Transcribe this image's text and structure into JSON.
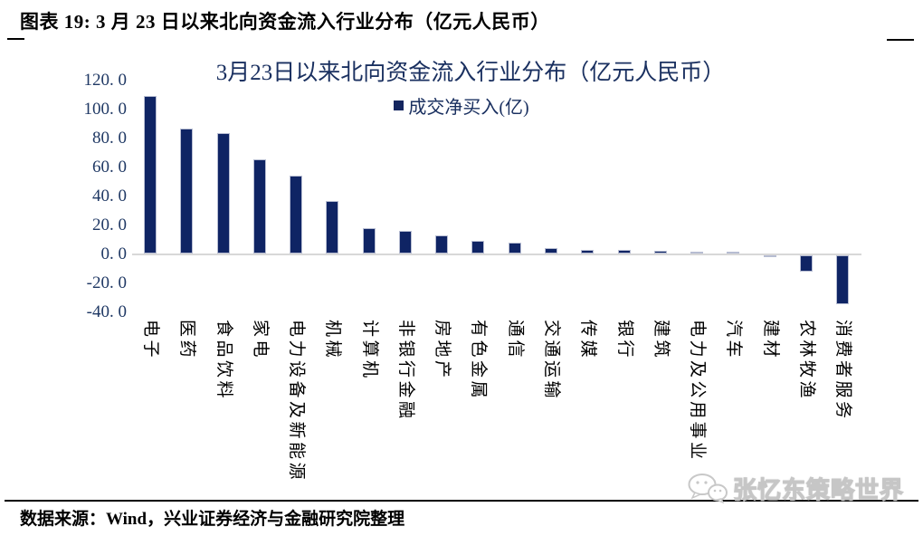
{
  "figure": {
    "caption": "图表 19:  3 月 23 日以来北向资金流入行业分布（亿元人民币）",
    "source": "数据来源：Wind，兴业证券经济与金融研究院整理",
    "watermark": "张忆东策略世界"
  },
  "chart_data": {
    "type": "bar",
    "title": "3月23日以来北向资金流入行业分布（亿元人民币）",
    "legend_label": "成交净买入(亿)",
    "legend_position": "top-center",
    "grid": false,
    "categories": [
      "电子",
      "医药",
      "食品饮料",
      "家电",
      "电力设备及新能源",
      "机械",
      "计算机",
      "非银行金融",
      "房地产",
      "有色金属",
      "通信",
      "交通运输",
      "传媒",
      "银行",
      "建筑",
      "电力及公用事业",
      "汽车",
      "建材",
      "农林牧渔",
      "消费者服务"
    ],
    "values": [
      108.5,
      86.0,
      83.0,
      65.0,
      53.5,
      36.5,
      17.5,
      15.5,
      12.5,
      8.5,
      7.5,
      3.8,
      2.5,
      2.3,
      2.0,
      1.5,
      1.3,
      -0.5,
      -11.0,
      -33.5
    ],
    "xlabel": "",
    "ylabel": "",
    "ylim": [
      -40,
      120
    ],
    "ytick_step": 20,
    "ytick_labels": [
      "120. 0",
      "100. 0",
      "80. 0",
      "60. 0",
      "40. 0",
      "20. 0",
      "0. 0",
      "-20. 0",
      "-40. 0"
    ],
    "bar_color": "#0f2464",
    "bar_border_color": "#b7bdd2",
    "axis_line_color": "#d8d8d8",
    "axis_text_color": "#1f3864",
    "title_color": "#1a3060"
  }
}
